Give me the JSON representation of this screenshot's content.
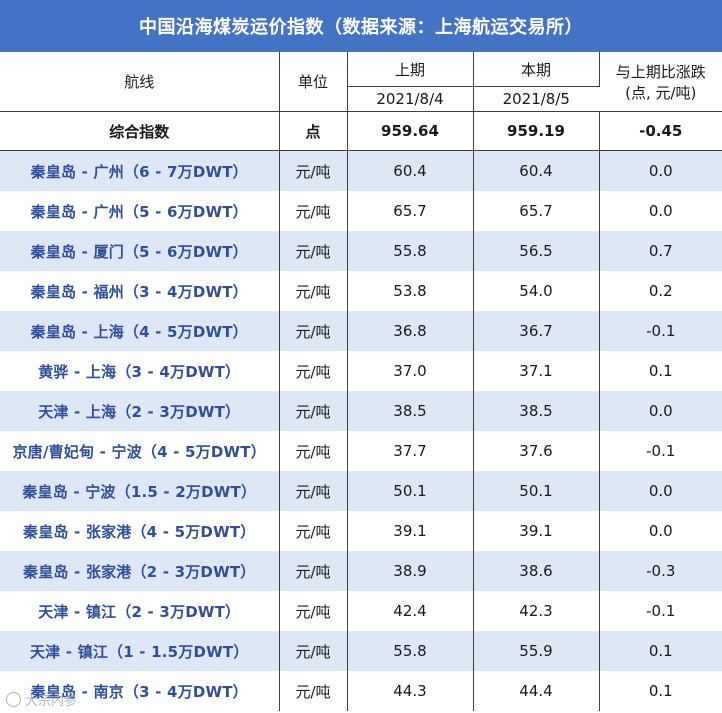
{
  "title": "中国沿海煤炭运价指数（数据来源：上海航运交易所）",
  "header": {
    "route": "航线",
    "unit": "单位",
    "prev": "上期",
    "curr": "本期",
    "prev_date": "2021/8/4",
    "curr_date": "2021/8/5",
    "change_line1": "与上期比涨跌",
    "change_line2": "(点, 元/吨)"
  },
  "summary": {
    "route": "综合指数",
    "unit": "点",
    "prev": "959.64",
    "curr": "959.19",
    "change": "-0.45"
  },
  "rows": [
    {
      "route": "秦皇岛 - 广州（6 - 7万DWT）",
      "unit": "元/吨",
      "prev": "60.4",
      "curr": "60.4",
      "change": "0.0"
    },
    {
      "route": "秦皇岛 - 广州（5 - 6万DWT）",
      "unit": "元/吨",
      "prev": "65.7",
      "curr": "65.7",
      "change": "0.0"
    },
    {
      "route": "秦皇岛 - 厦门（5 - 6万DWT）",
      "unit": "元/吨",
      "prev": "55.8",
      "curr": "56.5",
      "change": "0.7"
    },
    {
      "route": "秦皇岛 - 福州（3 - 4万DWT）",
      "unit": "元/吨",
      "prev": "53.8",
      "curr": "54.0",
      "change": "0.2"
    },
    {
      "route": "秦皇岛 - 上海（4 - 5万DWT）",
      "unit": "元/吨",
      "prev": "36.8",
      "curr": "36.7",
      "change": "-0.1"
    },
    {
      "route": "黄骅 - 上海（3 - 4万DWT）",
      "unit": "元/吨",
      "prev": "37.0",
      "curr": "37.1",
      "change": "0.1"
    },
    {
      "route": "天津 - 上海（2 - 3万DWT）",
      "unit": "元/吨",
      "prev": "38.5",
      "curr": "38.5",
      "change": "0.0"
    },
    {
      "route": "京唐/曹妃甸 - 宁波（4 - 5万DWT）",
      "unit": "元/吨",
      "prev": "37.7",
      "curr": "37.6",
      "change": "-0.1"
    },
    {
      "route": "秦皇岛 - 宁波（1.5 - 2万DWT）",
      "unit": "元/吨",
      "prev": "50.1",
      "curr": "50.1",
      "change": "0.0"
    },
    {
      "route": "秦皇岛 - 张家港（4 - 5万DWT）",
      "unit": "元/吨",
      "prev": "39.1",
      "curr": "39.1",
      "change": "0.0"
    },
    {
      "route": "秦皇岛 - 张家港（2 - 3万DWT）",
      "unit": "元/吨",
      "prev": "38.9",
      "curr": "38.6",
      "change": "-0.3"
    },
    {
      "route": "天津 - 镇江（2 - 3万DWT）",
      "unit": "元/吨",
      "prev": "42.4",
      "curr": "42.3",
      "change": "-0.1"
    },
    {
      "route": "天津 - 镇江（1 - 1.5万DWT）",
      "unit": "元/吨",
      "prev": "55.8",
      "curr": "55.9",
      "change": "0.1"
    },
    {
      "route": "秦皇岛 - 南京（3 - 4万DWT）",
      "unit": "元/吨",
      "prev": "44.3",
      "curr": "44.4",
      "change": "0.1"
    }
  ],
  "watermark": "大宗内参"
}
